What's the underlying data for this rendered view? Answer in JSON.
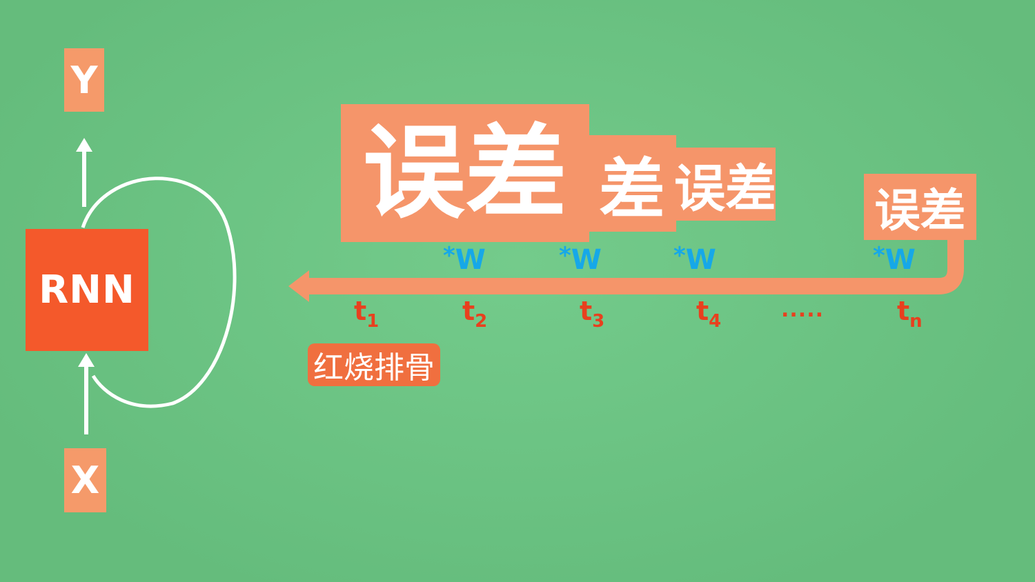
{
  "rnn": {
    "label": "RNN",
    "input_label": "X",
    "output_label": "Y"
  },
  "errors": {
    "e1": "误差",
    "e2": "差",
    "e3": "误差",
    "e4": "误差"
  },
  "weights": {
    "w1": "W",
    "w2": "W",
    "w3": "W",
    "w4": "W",
    "star": "*"
  },
  "steps": {
    "t": "t",
    "s1": "1",
    "s2": "2",
    "s3": "3",
    "s4": "4",
    "sn": "n",
    "ellipsis": "....."
  },
  "note": "红烧排骨",
  "colors": {
    "background": "#6bc884",
    "rnn_box": "#f4592b",
    "label_box": "#f59a6a",
    "arrow": "#f5956a",
    "weight_text": "#16a8e8",
    "step_text": "#e8401e"
  }
}
